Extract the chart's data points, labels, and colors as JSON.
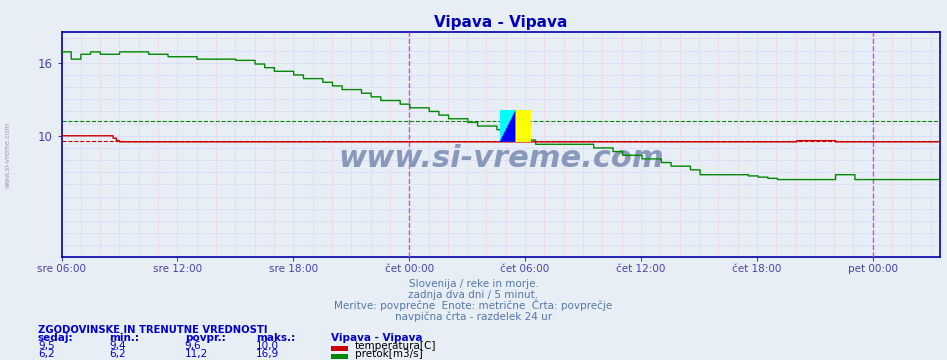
{
  "title": "Vipava - Vipava",
  "title_color": "#0000bb",
  "bg_color": "#e8eef5",
  "plot_bg_color": "#e8eef5",
  "grid_dot_color_h": "#ffb0b0",
  "grid_dot_color_v": "#c0c0ff",
  "avg_temp": 9.6,
  "avg_flow": 11.2,
  "red_color": "#cc0000",
  "green_color": "#008800",
  "border_color": "#0000aa",
  "vline_color": "#dd44dd",
  "watermark": "www.si-vreme.com",
  "watermark_color": "#8899bb",
  "subtitle_color": "#5577aa",
  "subtitle_lines": [
    "Slovenija / reke in morje.",
    "zadnja dva dni / 5 minut.",
    "Meritve: povprečne  Enote: metrične  Črta: povprečje",
    "navpična črta - razdelek 24 ur"
  ],
  "xtick_labels": [
    "sre 06:00",
    "sre 12:00",
    "sre 18:00",
    "čet 00:00",
    "čet 06:00",
    "čet 12:00",
    "čet 18:00",
    "pet 00:00"
  ],
  "tick_color": "#4444aa",
  "ytick_vals": [
    10,
    16
  ],
  "ytick_labels": [
    "10",
    "16"
  ],
  "ylim_min": 0,
  "ylim_max": 18.5,
  "left_label": "ZGODOVINSKE IN TRENUTNE VREDNOSTI",
  "table_headers": [
    "sedaj:",
    "min.:",
    "povpr.:",
    "maks.:"
  ],
  "table_row1": [
    "9,5",
    "9,4",
    "9,6",
    "10,0"
  ],
  "table_row2": [
    "6,2",
    "6,2",
    "11,2",
    "16,9"
  ],
  "table_series": [
    "temperatura[C]",
    "pretok[m3/s]"
  ],
  "table_colors": [
    "#cc0000",
    "#008800"
  ],
  "legend_title": "Vipava - Vipava",
  "sidewatermark": "www.si-vreme.com",
  "sidewatermark_color": "#9999bb"
}
